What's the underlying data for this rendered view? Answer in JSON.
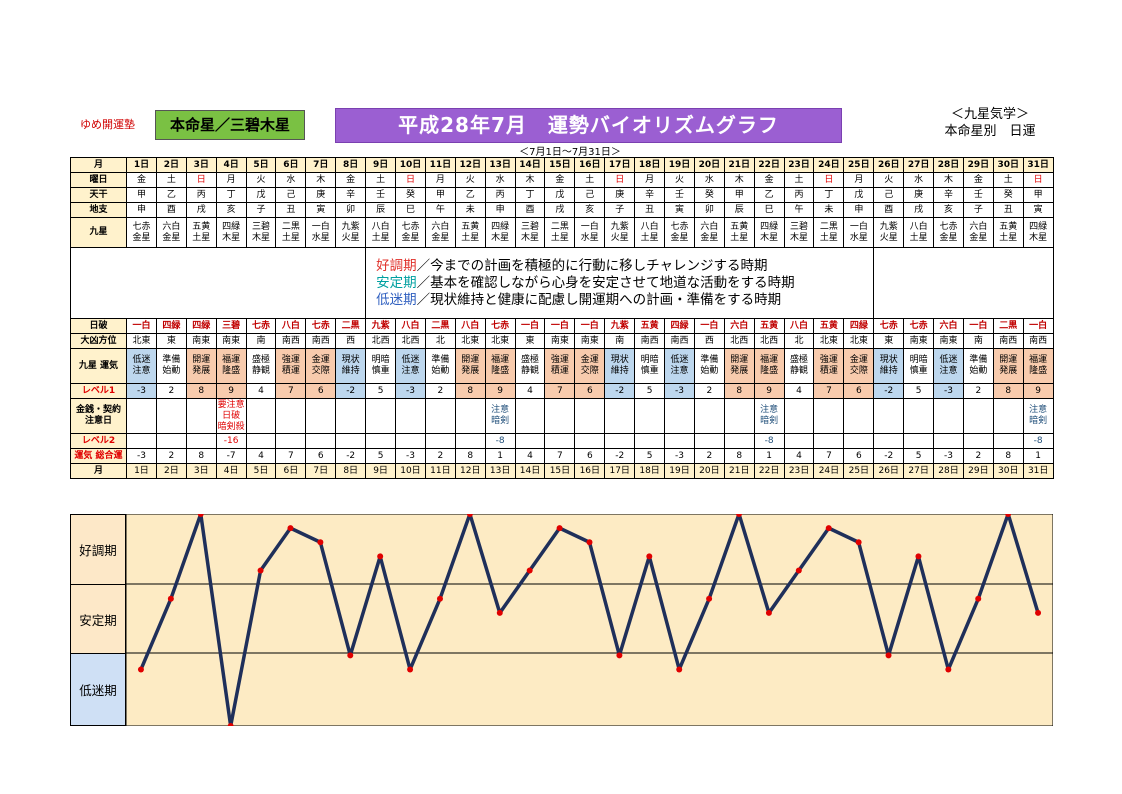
{
  "brand": "ゆめ開運塾",
  "honmeisei": "本命星／三碧木星",
  "title": "平成28年7月　運勢バイオリズムグラフ",
  "kyusei_line1": "＜九星気学＞",
  "kyusei_line2": "本命星別　日運",
  "period": "＜7月1日～7月31日＞",
  "row_labels": {
    "month": "月",
    "weekday": "曜日",
    "tenkan": "天干",
    "chishi": "地支",
    "kyusei": "九星",
    "nichiha": "日破",
    "daikyo": "大凶方位",
    "unki": "九星\n運気",
    "level1": "レベル1",
    "kinsen": "金銭・契約\n注意日",
    "level2": "レベル2",
    "sougou": "運気\n総合運"
  },
  "legend": {
    "good_term": "好調期",
    "good_text": "／今までの計画を積極的に行動に移しチャレンジする時期",
    "stable_term": "安定期",
    "stable_text": "／基本を確認しながら心身を安定させて地道な活動をする時期",
    "low_term": "低迷期",
    "low_text": "／現状維持と健康に配慮し開運期への計画・準備をする時期"
  },
  "days": [
    {
      "d": "1日",
      "w": "金",
      "k": "甲",
      "s": "申",
      "q": "七赤\n金星",
      "h": "一白",
      "f": "北東",
      "u": "低迷\n注意",
      "l1": -3,
      "n": "",
      "l2": "",
      "t": -3
    },
    {
      "d": "2日",
      "w": "土",
      "k": "乙",
      "s": "酉",
      "q": "六白\n金星",
      "h": "四緑",
      "f": "東",
      "u": "準備\n始動",
      "l1": 2,
      "n": "",
      "l2": "",
      "t": 2
    },
    {
      "d": "3日",
      "w": "日",
      "k": "丙",
      "s": "戌",
      "q": "五黄\n土星",
      "h": "四緑",
      "f": "南東",
      "u": "開運\n発展",
      "l1": 8,
      "n": "",
      "l2": "",
      "t": 8
    },
    {
      "d": "4日",
      "w": "月",
      "k": "丁",
      "s": "亥",
      "q": "四緑\n木星",
      "h": "三碧",
      "f": "南東",
      "u": "福運\n隆盛",
      "l1": 9,
      "n": "要注意\n日破\n暗剣殺",
      "l2": "-16",
      "t": -7
    },
    {
      "d": "5日",
      "w": "火",
      "k": "戊",
      "s": "子",
      "q": "三碧\n木星",
      "h": "七赤",
      "f": "南",
      "u": "盛極\n静観",
      "l1": 4,
      "n": "",
      "l2": "",
      "t": 4
    },
    {
      "d": "6日",
      "w": "水",
      "k": "己",
      "s": "丑",
      "q": "二黒\n土星",
      "h": "八白",
      "f": "南西",
      "u": "強運\n積運",
      "l1": 7,
      "n": "",
      "l2": "",
      "t": 7
    },
    {
      "d": "7日",
      "w": "木",
      "k": "庚",
      "s": "寅",
      "q": "一白\n水星",
      "h": "七赤",
      "f": "南西",
      "u": "金運\n交際",
      "l1": 6,
      "n": "",
      "l2": "",
      "t": 6
    },
    {
      "d": "8日",
      "w": "金",
      "k": "辛",
      "s": "卯",
      "q": "九紫\n火星",
      "h": "二黒",
      "f": "西",
      "u": "現状\n維持",
      "l1": -2,
      "n": "",
      "l2": "",
      "t": -2
    },
    {
      "d": "9日",
      "w": "土",
      "k": "壬",
      "s": "辰",
      "q": "八白\n土星",
      "h": "九紫",
      "f": "北西",
      "u": "明暗\n慎重",
      "l1": 5,
      "n": "",
      "l2": "",
      "t": 5
    },
    {
      "d": "10日",
      "w": "日",
      "k": "癸",
      "s": "巳",
      "q": "七赤\n金星",
      "h": "八白",
      "f": "北西",
      "u": "低迷\n注意",
      "l1": -3,
      "n": "",
      "l2": "",
      "t": -3
    },
    {
      "d": "11日",
      "w": "月",
      "k": "甲",
      "s": "午",
      "q": "六白\n金星",
      "h": "二黒",
      "f": "北",
      "u": "準備\n始動",
      "l1": 2,
      "n": "",
      "l2": "",
      "t": 2
    },
    {
      "d": "12日",
      "w": "火",
      "k": "乙",
      "s": "未",
      "q": "五黄\n土星",
      "h": "八白",
      "f": "北東",
      "u": "開運\n発展",
      "l1": 8,
      "n": "",
      "l2": "",
      "t": 8
    },
    {
      "d": "13日",
      "w": "水",
      "k": "丙",
      "s": "申",
      "q": "四緑\n木星",
      "h": "七赤",
      "f": "北東",
      "u": "福運\n隆盛",
      "l1": 9,
      "n": "注意\n暗剣",
      "l2": "-8",
      "t": 1
    },
    {
      "d": "14日",
      "w": "木",
      "k": "丁",
      "s": "酉",
      "q": "三碧\n木星",
      "h": "一白",
      "f": "東",
      "u": "盛極\n静観",
      "l1": 4,
      "n": "",
      "l2": "",
      "t": 4
    },
    {
      "d": "15日",
      "w": "金",
      "k": "戊",
      "s": "戌",
      "q": "二黒\n土星",
      "h": "一白",
      "f": "南東",
      "u": "強運\n積運",
      "l1": 7,
      "n": "",
      "l2": "",
      "t": 7
    },
    {
      "d": "16日",
      "w": "土",
      "k": "己",
      "s": "亥",
      "q": "一白\n水星",
      "h": "一白",
      "f": "南東",
      "u": "金運\n交際",
      "l1": 6,
      "n": "",
      "l2": "",
      "t": 6
    },
    {
      "d": "17日",
      "w": "日",
      "k": "庚",
      "s": "子",
      "q": "九紫\n火星",
      "h": "九紫",
      "f": "南",
      "u": "現状\n維持",
      "l1": -2,
      "n": "",
      "l2": "",
      "t": -2
    },
    {
      "d": "18日",
      "w": "月",
      "k": "辛",
      "s": "丑",
      "q": "八白\n土星",
      "h": "五黄",
      "f": "南西",
      "u": "明暗\n慎重",
      "l1": 5,
      "n": "",
      "l2": "",
      "t": 5
    },
    {
      "d": "19日",
      "w": "火",
      "k": "壬",
      "s": "寅",
      "q": "七赤\n金星",
      "h": "四緑",
      "f": "南西",
      "u": "低迷\n注意",
      "l1": -3,
      "n": "",
      "l2": "",
      "t": -3
    },
    {
      "d": "20日",
      "w": "水",
      "k": "癸",
      "s": "卯",
      "q": "六白\n金星",
      "h": "一白",
      "f": "西",
      "u": "準備\n始動",
      "l1": 2,
      "n": "",
      "l2": "",
      "t": 2
    },
    {
      "d": "21日",
      "w": "木",
      "k": "甲",
      "s": "辰",
      "q": "五黄\n土星",
      "h": "六白",
      "f": "北西",
      "u": "開運\n発展",
      "l1": 8,
      "n": "",
      "l2": "",
      "t": 8
    },
    {
      "d": "22日",
      "w": "金",
      "k": "乙",
      "s": "巳",
      "q": "四緑\n木星",
      "h": "五黄",
      "f": "北西",
      "u": "福運\n隆盛",
      "l1": 9,
      "n": "注意\n暗剣",
      "l2": "-8",
      "t": 1
    },
    {
      "d": "23日",
      "w": "土",
      "k": "丙",
      "s": "午",
      "q": "三碧\n木星",
      "h": "八白",
      "f": "北",
      "u": "盛極\n静観",
      "l1": 4,
      "n": "",
      "l2": "",
      "t": 4
    },
    {
      "d": "24日",
      "w": "日",
      "k": "丁",
      "s": "未",
      "q": "二黒\n土星",
      "h": "五黄",
      "f": "北東",
      "u": "強運\n積運",
      "l1": 7,
      "n": "",
      "l2": "",
      "t": 7
    },
    {
      "d": "25日",
      "w": "月",
      "k": "戊",
      "s": "申",
      "q": "一白\n水星",
      "h": "四緑",
      "f": "北東",
      "u": "金運\n交際",
      "l1": 6,
      "n": "",
      "l2": "",
      "t": 6
    },
    {
      "d": "26日",
      "w": "火",
      "k": "己",
      "s": "酉",
      "q": "九紫\n火星",
      "h": "七赤",
      "f": "東",
      "u": "現状\n維持",
      "l1": -2,
      "n": "",
      "l2": "",
      "t": -2
    },
    {
      "d": "27日",
      "w": "水",
      "k": "庚",
      "s": "戌",
      "q": "八白\n土星",
      "h": "七赤",
      "f": "南東",
      "u": "明暗\n慎重",
      "l1": 5,
      "n": "",
      "l2": "",
      "t": 5
    },
    {
      "d": "28日",
      "w": "木",
      "k": "辛",
      "s": "亥",
      "q": "七赤\n金星",
      "h": "六白",
      "f": "南東",
      "u": "低迷\n注意",
      "l1": -3,
      "n": "",
      "l2": "",
      "t": -3
    },
    {
      "d": "29日",
      "w": "金",
      "k": "壬",
      "s": "子",
      "q": "六白\n金星",
      "h": "一白",
      "f": "南",
      "u": "準備\n始動",
      "l1": 2,
      "n": "",
      "l2": "",
      "t": 2
    },
    {
      "d": "30日",
      "w": "土",
      "k": "癸",
      "s": "丑",
      "q": "五黄\n土星",
      "h": "二黒",
      "f": "南西",
      "u": "開運\n発展",
      "l1": 8,
      "n": "",
      "l2": "",
      "t": 8
    },
    {
      "d": "31日",
      "w": "日",
      "k": "甲",
      "s": "寅",
      "q": "四緑\n木星",
      "h": "一白",
      "f": "南西",
      "u": "福運\n隆盛",
      "l1": 9,
      "n": "注意\n暗剣",
      "l2": "-8",
      "t": 1
    }
  ],
  "colors": {
    "line": "#1f2f5a",
    "marker": "#e00000",
    "chart_bg": "#fdebc4",
    "left_band": "#fde8c8",
    "bottom_band": "#cfe0f5",
    "weekend_red": "#e00000"
  },
  "chart_data": {
    "type": "line",
    "categories": [
      "1日",
      "2日",
      "3日",
      "4日",
      "5日",
      "6日",
      "7日",
      "8日",
      "9日",
      "10日",
      "11日",
      "12日",
      "13日",
      "14日",
      "15日",
      "16日",
      "17日",
      "18日",
      "19日",
      "20日",
      "21日",
      "22日",
      "23日",
      "24日",
      "25日",
      "26日",
      "27日",
      "28日",
      "29日",
      "30日",
      "31日"
    ],
    "values": [
      -3,
      2,
      8,
      -7,
      4,
      7,
      6,
      -2,
      5,
      -3,
      2,
      8,
      1,
      4,
      7,
      6,
      -2,
      5,
      -3,
      2,
      8,
      1,
      4,
      7,
      6,
      -2,
      5,
      -3,
      2,
      8,
      1
    ],
    "band_labels": [
      "好調期",
      "安定期",
      "低迷期"
    ],
    "ylim": [
      -7,
      8
    ]
  }
}
